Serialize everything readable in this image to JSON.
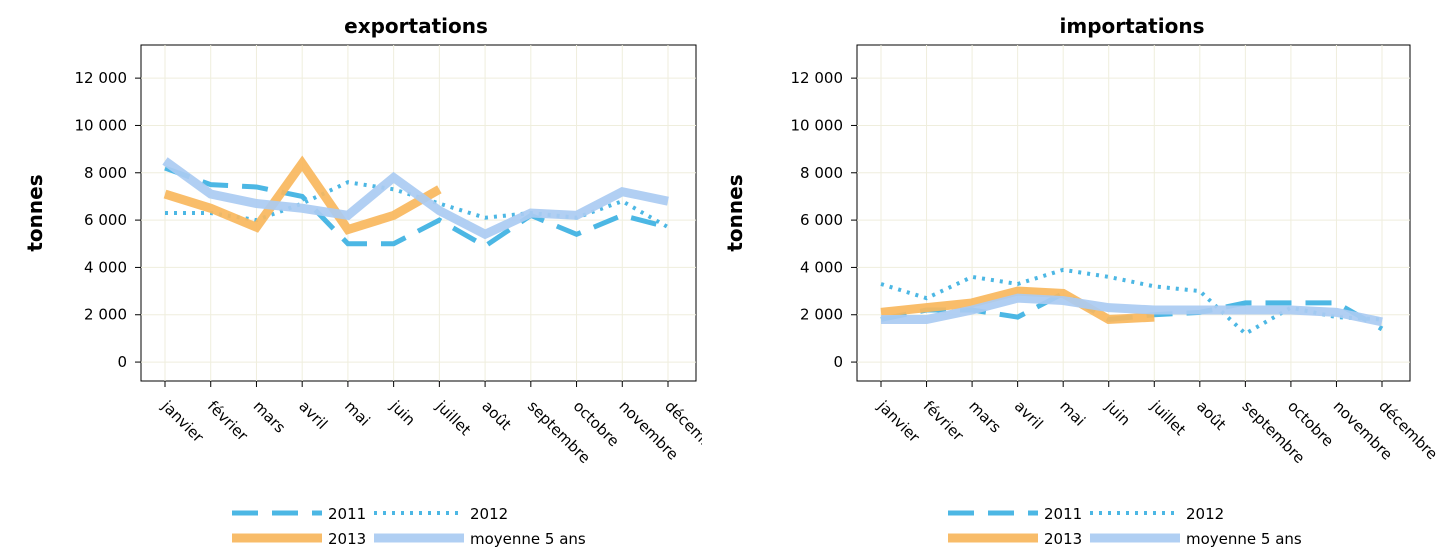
{
  "chart_data": [
    {
      "type": "line",
      "title": "exportations",
      "ylabel": "tonnes",
      "xlabel": "",
      "categories": [
        "janvier",
        "février",
        "mars",
        "avril",
        "mai",
        "juin",
        "juillet",
        "août",
        "septembre",
        "octobre",
        "novembre",
        "décembre"
      ],
      "ylim": [
        -800,
        13400
      ],
      "yticks": [
        0,
        2000,
        4000,
        6000,
        8000,
        10000,
        12000
      ],
      "ytick_labels": [
        "0",
        "2 000",
        "4 000",
        "6 000",
        "8 000",
        "10 000",
        "12 000"
      ],
      "grid": true,
      "series": [
        {
          "name": "2011",
          "style": "dashed",
          "color": "#4cb7e4",
          "values": [
            8200,
            7500,
            7400,
            7000,
            5000,
            5000,
            6000,
            4900,
            6200,
            5400,
            6200,
            5700
          ]
        },
        {
          "name": "2012",
          "style": "dotted",
          "color": "#4cb7e4",
          "values": [
            6300,
            6300,
            6000,
            6700,
            7600,
            7300,
            6700,
            6100,
            6300,
            6100,
            6800,
            5700
          ]
        },
        {
          "name": "2013",
          "style": "solid",
          "color": "#f8b75d",
          "values": [
            7100,
            6500,
            5700,
            8400,
            5600,
            6200,
            7300,
            null,
            null,
            null,
            null,
            null
          ]
        },
        {
          "name": "moyenne 5 ans",
          "style": "solid",
          "color": "#aacbf2",
          "values": [
            8500,
            7100,
            6700,
            6500,
            6200,
            7800,
            6400,
            5400,
            6300,
            6200,
            7200,
            6800
          ]
        }
      ]
    },
    {
      "type": "line",
      "title": "importations",
      "ylabel": "tonnes",
      "xlabel": "",
      "categories": [
        "janvier",
        "février",
        "mars",
        "avril",
        "mai",
        "juin",
        "juillet",
        "août",
        "septembre",
        "octobre",
        "novembre",
        "décembre"
      ],
      "ylim": [
        -800,
        13400
      ],
      "yticks": [
        0,
        2000,
        4000,
        6000,
        8000,
        10000,
        12000
      ],
      "ytick_labels": [
        "0",
        "2 000",
        "4 000",
        "6 000",
        "8 000",
        "10 000",
        "12 000"
      ],
      "grid": true,
      "series": [
        {
          "name": "2011",
          "style": "dashed",
          "color": "#4cb7e4",
          "values": [
            1800,
            2200,
            2200,
            1900,
            2900,
            1800,
            2000,
            2100,
            2500,
            2500,
            2500,
            1400
          ]
        },
        {
          "name": "2012",
          "style": "dotted",
          "color": "#4cb7e4",
          "values": [
            3300,
            2700,
            3600,
            3300,
            3900,
            3600,
            3200,
            3000,
            1200,
            2300,
            1900,
            1800
          ]
        },
        {
          "name": "2013",
          "style": "solid",
          "color": "#f8b75d",
          "values": [
            2100,
            2300,
            2500,
            3000,
            2900,
            1800,
            1900,
            null,
            null,
            null,
            null,
            null
          ]
        },
        {
          "name": "moyenne 5 ans",
          "style": "solid",
          "color": "#aacbf2",
          "values": [
            1800,
            1800,
            2200,
            2700,
            2600,
            2300,
            2200,
            2200,
            2200,
            2200,
            2100,
            1700
          ]
        }
      ]
    }
  ],
  "legend": [
    {
      "name": "2011"
    },
    {
      "name": "2012"
    },
    {
      "name": "2013"
    },
    {
      "name": "moyenne 5 ans"
    }
  ]
}
